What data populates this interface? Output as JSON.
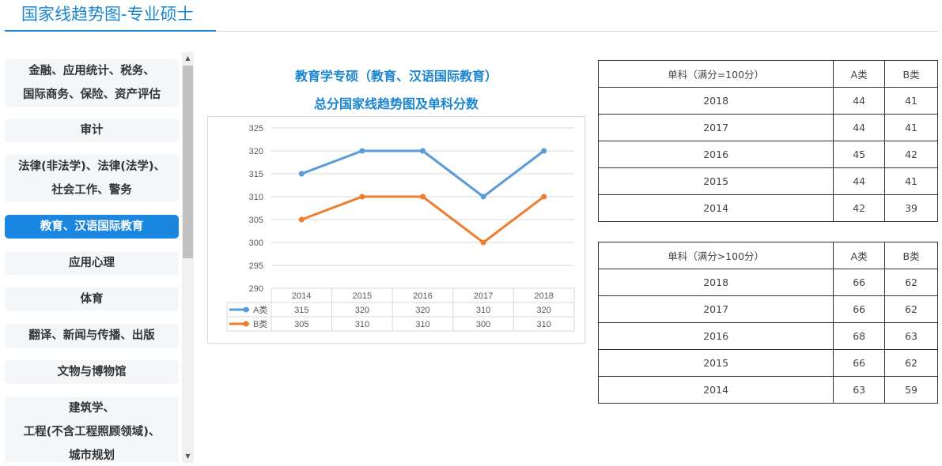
{
  "page": {
    "title": "国家线趋势图-专业硕士"
  },
  "sidebar": {
    "items": [
      {
        "lines": [
          "金融、应用统计、税务、",
          "国际商务、保险、资产评估"
        ],
        "active": false
      },
      {
        "lines": [
          "审计"
        ],
        "active": false
      },
      {
        "lines": [
          "法律(非法学)、法律(法学)、",
          "社会工作、警务"
        ],
        "active": false
      },
      {
        "lines": [
          "教育、汉语国际教育"
        ],
        "active": true
      },
      {
        "lines": [
          "应用心理"
        ],
        "active": false
      },
      {
        "lines": [
          "体育"
        ],
        "active": false
      },
      {
        "lines": [
          "翻译、新闻与传播、出版"
        ],
        "active": false
      },
      {
        "lines": [
          "文物与博物馆"
        ],
        "active": false
      },
      {
        "lines": [
          "建筑学、",
          "工程(不含工程照顾领域)、",
          "城市规划"
        ],
        "active": false
      }
    ],
    "scroll_up_glyph": "▲",
    "scroll_down_glyph": "▼"
  },
  "chart": {
    "title": "教育学专硕（教育、汉语国际教育）",
    "subtitle": "总分国家线趋势图及单科分数"
  },
  "chart_data": {
    "type": "line",
    "categories": [
      "2014",
      "2015",
      "2016",
      "2017",
      "2018"
    ],
    "series": [
      {
        "name": "A类",
        "values": [
          315,
          320,
          320,
          310,
          320
        ],
        "color": "#5b9bd5"
      },
      {
        "name": "B类",
        "values": [
          305,
          310,
          310,
          300,
          310
        ],
        "color": "#ed7d31"
      }
    ],
    "ylim": [
      290,
      325
    ],
    "yticks": [
      290,
      295,
      300,
      305,
      310,
      315,
      320,
      325
    ],
    "grid": true,
    "legend": "data-table-below"
  },
  "tables": [
    {
      "headers": [
        "单科（满分=100分）",
        "A类",
        "B类"
      ],
      "rows": [
        [
          "2018",
          "44",
          "41"
        ],
        [
          "2017",
          "44",
          "41"
        ],
        [
          "2016",
          "45",
          "42"
        ],
        [
          "2015",
          "44",
          "41"
        ],
        [
          "2014",
          "42",
          "39"
        ]
      ]
    },
    {
      "headers": [
        "单科（满分>100分）",
        "A类",
        "B类"
      ],
      "rows": [
        [
          "2018",
          "66",
          "62"
        ],
        [
          "2017",
          "66",
          "62"
        ],
        [
          "2016",
          "68",
          "63"
        ],
        [
          "2015",
          "66",
          "62"
        ],
        [
          "2014",
          "63",
          "59"
        ]
      ]
    }
  ]
}
